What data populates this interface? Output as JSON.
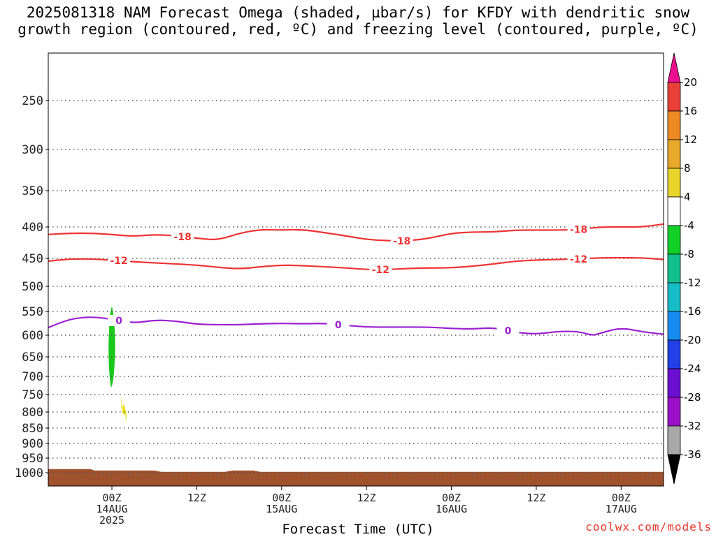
{
  "title_lines": [
    "2025081318 NAM Forecast Omega (shaded, µbar/s) for KFDY with dendritic snow",
    "growth region (contoured, red, ºC) and freezing level (contoured, purple, ºC)"
  ],
  "xlabel": "Forecast Time (UTC)",
  "credit": "coolwx.com/models",
  "chart_data": {
    "type": "contour",
    "title": "2025081318 NAM Forecast Omega (shaded, µbar/s) for KFDY with dendritic snow growth region (contoured, red, ºC) and freezing level (contoured, purple, ºC)",
    "xlabel": "Forecast Time (UTC)",
    "ylabel": "",
    "x_axis": {
      "unit": "hours from 2025-08-13 18Z",
      "range": [
        -3,
        84
      ],
      "ticks": [
        {
          "hour": 6,
          "lines": [
            "00Z",
            "14AUG",
            "2025"
          ]
        },
        {
          "hour": 18,
          "lines": [
            "12Z"
          ]
        },
        {
          "hour": 30,
          "lines": [
            "00Z",
            "15AUG"
          ]
        },
        {
          "hour": 42,
          "lines": [
            "12Z"
          ]
        },
        {
          "hour": 54,
          "lines": [
            "00Z",
            "16AUG"
          ]
        },
        {
          "hour": 66,
          "lines": [
            "12Z"
          ]
        },
        {
          "hour": 78,
          "lines": [
            "00Z",
            "17AUG"
          ]
        }
      ]
    },
    "y_axis": {
      "unit": "hPa",
      "range": [
        1025,
        185
      ],
      "reversed": true,
      "ticks": [
        250,
        300,
        350,
        400,
        450,
        500,
        550,
        600,
        650,
        700,
        750,
        800,
        850,
        900,
        950,
        1000
      ],
      "grid": "dotted"
    },
    "contours": [
      {
        "color": "#ee3333",
        "label": "-18",
        "label_at_hours": [
          16,
          47,
          72
        ],
        "points": [
          [
            -3,
            412
          ],
          [
            0,
            410
          ],
          [
            3,
            410
          ],
          [
            6,
            412
          ],
          [
            9,
            415
          ],
          [
            12,
            412
          ],
          [
            15,
            414
          ],
          [
            18,
            418
          ],
          [
            21,
            421
          ],
          [
            24,
            410
          ],
          [
            27,
            404
          ],
          [
            30,
            405
          ],
          [
            33,
            404
          ],
          [
            36,
            409
          ],
          [
            39,
            414
          ],
          [
            42,
            420
          ],
          [
            45,
            422
          ],
          [
            48,
            422
          ],
          [
            51,
            418
          ],
          [
            54,
            410
          ],
          [
            57,
            408
          ],
          [
            60,
            408
          ],
          [
            63,
            405
          ],
          [
            66,
            405
          ],
          [
            69,
            405
          ],
          [
            72,
            404
          ],
          [
            75,
            400
          ],
          [
            78,
            400
          ],
          [
            81,
            400
          ],
          [
            84,
            396
          ]
        ]
      },
      {
        "color": "#ee3333",
        "label": "-12",
        "label_at_hours": [
          7,
          44,
          72
        ],
        "points": [
          [
            -3,
            455
          ],
          [
            0,
            451
          ],
          [
            3,
            451
          ],
          [
            6,
            453
          ],
          [
            9,
            456
          ],
          [
            12,
            458
          ],
          [
            15,
            460
          ],
          [
            18,
            462
          ],
          [
            21,
            466
          ],
          [
            24,
            469
          ],
          [
            27,
            465
          ],
          [
            30,
            462
          ],
          [
            33,
            463
          ],
          [
            36,
            465
          ],
          [
            39,
            467
          ],
          [
            42,
            470
          ],
          [
            45,
            470
          ],
          [
            48,
            468
          ],
          [
            51,
            467
          ],
          [
            54,
            467
          ],
          [
            57,
            464
          ],
          [
            60,
            460
          ],
          [
            63,
            455
          ],
          [
            66,
            453
          ],
          [
            69,
            452
          ],
          [
            72,
            451
          ],
          [
            75,
            449
          ],
          [
            78,
            449
          ],
          [
            81,
            449
          ],
          [
            84,
            452
          ]
        ]
      },
      {
        "color": "#9c1fd0",
        "label": "0",
        "label_at_hours": [
          7,
          38,
          62
        ],
        "points": [
          [
            -3,
            584
          ],
          [
            0,
            566
          ],
          [
            3,
            561
          ],
          [
            6,
            566
          ],
          [
            9,
            575
          ],
          [
            12,
            568
          ],
          [
            15,
            570
          ],
          [
            18,
            577
          ],
          [
            21,
            578
          ],
          [
            24,
            578
          ],
          [
            27,
            576
          ],
          [
            30,
            575
          ],
          [
            33,
            576
          ],
          [
            36,
            575
          ],
          [
            39,
            579
          ],
          [
            42,
            583
          ],
          [
            45,
            583
          ],
          [
            48,
            583
          ],
          [
            51,
            583
          ],
          [
            54,
            586
          ],
          [
            57,
            587
          ],
          [
            60,
            584
          ],
          [
            63,
            594
          ],
          [
            66,
            598
          ],
          [
            69,
            592
          ],
          [
            72,
            592
          ],
          [
            74,
            601
          ],
          [
            75,
            596
          ],
          [
            78,
            584
          ],
          [
            81,
            593
          ],
          [
            84,
            598
          ]
        ]
      }
    ],
    "omega_shading": [
      {
        "value_range": [
          -8,
          -4
        ],
        "color": "#19c819",
        "approx_hour": 6,
        "approx_levels_hPa": [
          540,
          730
        ]
      },
      {
        "value_range": [
          4,
          8
        ],
        "color": "#e8e22a",
        "approx_hour": 7.7,
        "approx_levels_hPa": [
          775,
          810
        ]
      }
    ],
    "terrain": {
      "color": "#a0522d",
      "top_hPa": 990
    },
    "colorbar": {
      "levels": [
        -36,
        -32,
        -28,
        -24,
        -20,
        -16,
        -12,
        -8,
        -4,
        4,
        8,
        12,
        16,
        20
      ],
      "colors": [
        "#000000",
        "#a8a8a8",
        "#9b10c8",
        "#6b10d0",
        "#2240e8",
        "#168cf0",
        "#16bcc8",
        "#12c08c",
        "#12d028",
        "#ffffff",
        "#e8d42a",
        "#e8a82a",
        "#ee8a22",
        "#e84038",
        "#ec1090"
      ],
      "extend": "both"
    }
  }
}
